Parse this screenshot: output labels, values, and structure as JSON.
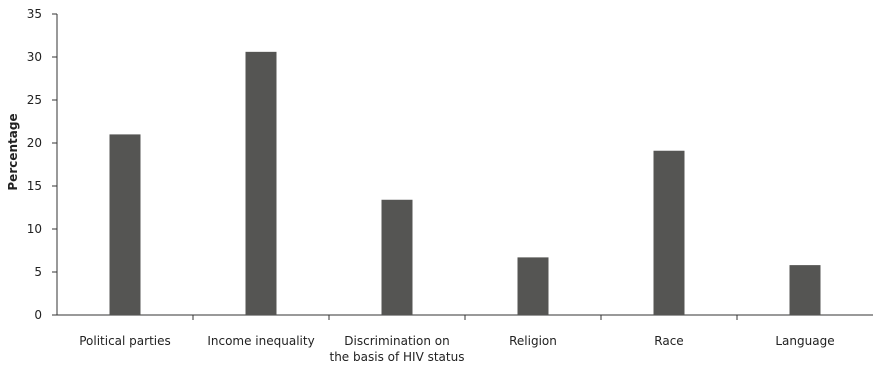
{
  "chart_data": {
    "type": "bar",
    "title": "",
    "xlabel": "",
    "ylabel": "Percentage",
    "ylim": [
      0,
      35
    ],
    "yticks": [
      0,
      5,
      10,
      15,
      20,
      25,
      30,
      35
    ],
    "grid": false,
    "categories": [
      [
        "Political parties"
      ],
      [
        "Income inequality"
      ],
      [
        "Discrimination on",
        "the basis of HIV status"
      ],
      [
        "Religion"
      ],
      [
        "Race"
      ],
      [
        "Language"
      ]
    ],
    "values": [
      21.0,
      30.6,
      13.4,
      6.7,
      19.1,
      5.8
    ],
    "bar_color": "#555553",
    "axis_color": "#333333"
  }
}
